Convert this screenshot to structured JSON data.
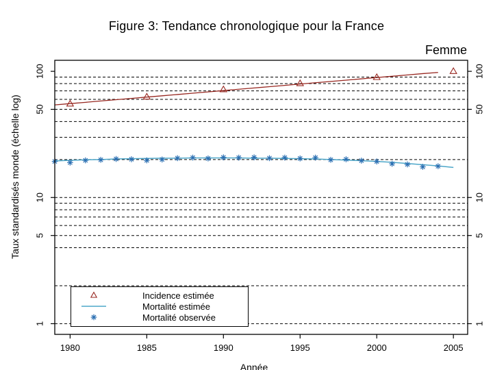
{
  "page": {
    "title": "Figure 3: Tendance chronologique pour la France",
    "panel_label": "Femme"
  },
  "colors": {
    "incidence": "#97261f",
    "mortality_estimated": "#4da7c9",
    "mortality_observed": "#2b6fb2",
    "grid": "#000000",
    "axis": "#000000",
    "background": "#ffffff"
  },
  "legend": {
    "items": [
      {
        "label": "Incidence estimée",
        "symbol": "triangle-open",
        "color": "#97261f"
      },
      {
        "label": "Mortalité estimée",
        "symbol": "line",
        "color": "#4da7c9"
      },
      {
        "label": "Mortalité observée",
        "symbol": "asterisk",
        "color": "#2b6fb2"
      }
    ]
  },
  "chart_data": {
    "type": "line",
    "title": "Figure 3: Tendance chronologique pour la France",
    "panel": "Femme",
    "xlabel": "Année",
    "ylabel": "Taux standardisés monde (échelle log)",
    "y_scale": "log",
    "xlim": [
      1979.0,
      2005.93
    ],
    "ylim": [
      0.823,
      122.3
    ],
    "x_ticks": [
      1980,
      1985,
      1990,
      1995,
      2000,
      2005
    ],
    "y_ticks": [
      1,
      5,
      10,
      50,
      100
    ],
    "y_gridlines": [
      1,
      2,
      4,
      5,
      6,
      7,
      8,
      9,
      10,
      20,
      30,
      40,
      50,
      60,
      70,
      80,
      90
    ],
    "grid_dash": "4 3",
    "legend_position": "bottom-left",
    "series": [
      {
        "name": "Incidence estimée",
        "type": "line",
        "color": "#97261f",
        "marker": "triangle-open",
        "x": [
          1979,
          1980,
          1981,
          1982,
          1983,
          1984,
          1985,
          1986,
          1987,
          1988,
          1989,
          1990,
          1991,
          1992,
          1993,
          1994,
          1995,
          1996,
          1997,
          1998,
          1999,
          2000,
          2001,
          2002,
          2003,
          2004
        ],
        "y": [
          54.2,
          55.5,
          56.8,
          58.2,
          59.6,
          61.0,
          62.5,
          64.0,
          65.5,
          67.1,
          68.7,
          70.4,
          72.1,
          73.8,
          75.6,
          77.4,
          79.3,
          81.2,
          83.1,
          85.1,
          87.2,
          89.3,
          91.4,
          93.6,
          95.9,
          98.0
        ],
        "marker_x": [
          1980,
          1985,
          1990,
          1995,
          2000,
          2005
        ],
        "marker_y": [
          55.5,
          63,
          72,
          80.5,
          90,
          100.5
        ]
      },
      {
        "name": "Mortalité estimée",
        "type": "line",
        "color": "#4da7c9",
        "x": [
          1979,
          1980,
          1981,
          1982,
          1983,
          1984,
          1985,
          1986,
          1987,
          1988,
          1989,
          1990,
          1991,
          1992,
          1993,
          1994,
          1995,
          1996,
          1997,
          1998,
          1999,
          2000,
          2001,
          2002,
          2003,
          2004,
          2005
        ],
        "y": [
          19.5,
          19.7,
          19.9,
          20.0,
          20.2,
          20.3,
          20.4,
          20.5,
          20.5,
          20.6,
          20.6,
          20.6,
          20.6,
          20.5,
          20.5,
          20.4,
          20.3,
          20.2,
          20.0,
          19.8,
          19.6,
          19.3,
          19.0,
          18.6,
          18.2,
          17.8,
          17.3
        ]
      },
      {
        "name": "Mortalité observée",
        "type": "scatter",
        "color": "#2b6fb2",
        "marker": "asterisk",
        "x": [
          1979,
          1980,
          1981,
          1982,
          1983,
          1984,
          1985,
          1986,
          1987,
          1988,
          1989,
          1990,
          1991,
          1992,
          1993,
          1994,
          1995,
          1996,
          1997,
          1998,
          1999,
          2000,
          2001,
          2002,
          2003,
          2004
        ],
        "y": [
          19.3,
          18.9,
          19.7,
          19.9,
          20.2,
          20.1,
          19.7,
          20.0,
          20.5,
          20.7,
          20.4,
          20.8,
          20.7,
          20.8,
          20.5,
          20.7,
          20.4,
          20.7,
          19.9,
          20.1,
          19.6,
          19.3,
          18.5,
          18.3,
          17.5,
          17.7
        ]
      }
    ]
  }
}
